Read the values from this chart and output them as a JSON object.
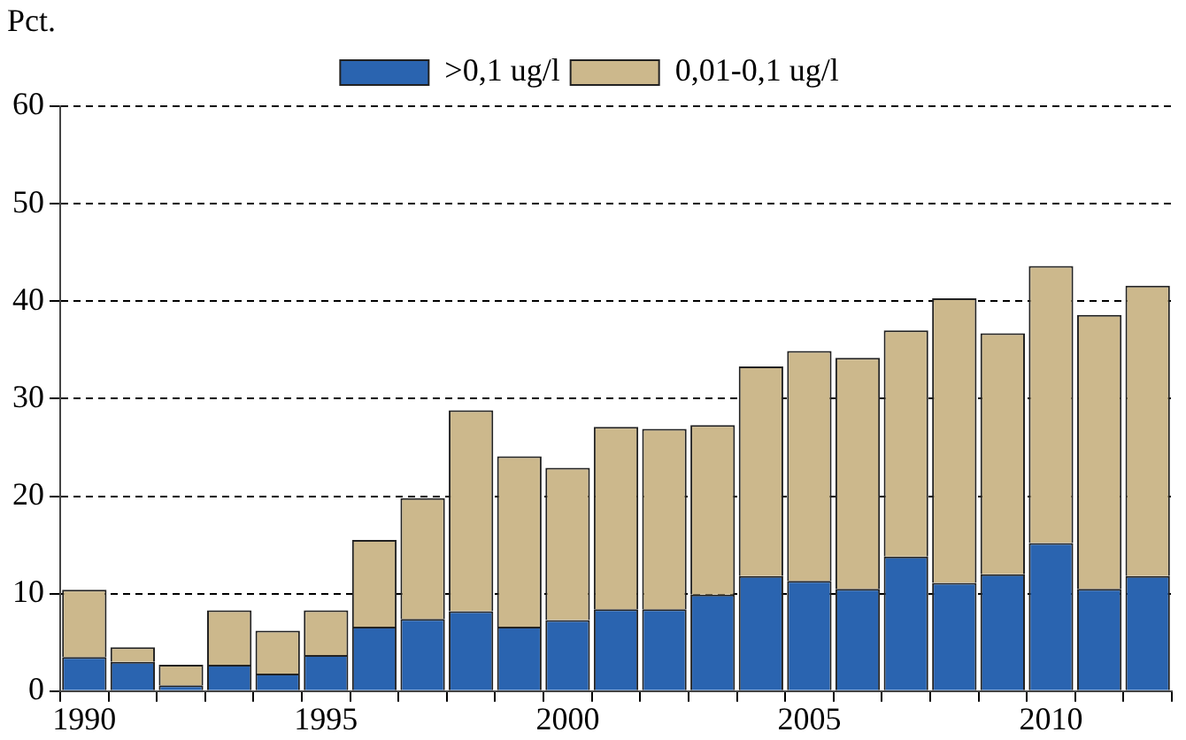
{
  "chart_data": {
    "type": "bar",
    "stacked": true,
    "ylabel": "Pct.",
    "categories": [
      "1990",
      null,
      null,
      null,
      null,
      "1995",
      null,
      null,
      null,
      null,
      "2000",
      null,
      null,
      null,
      null,
      "2005",
      null,
      null,
      null,
      null,
      "2010",
      null,
      null
    ],
    "series": [
      {
        "name": ">0,1 ug/l",
        "color": "#2a64b0",
        "values": [
          3.5,
          3.0,
          0.6,
          2.7,
          1.8,
          3.7,
          6.6,
          7.4,
          8.2,
          6.6,
          7.3,
          8.4,
          8.4,
          9.9,
          11.8,
          11.3,
          10.5,
          13.8,
          11.1,
          12.0,
          15.2,
          10.5,
          11.8
        ]
      },
      {
        "name": "0,01-0,1 ug/l",
        "color": "#ccb88c",
        "values": [
          6.9,
          1.5,
          2.1,
          5.6,
          4.4,
          4.6,
          8.9,
          12.4,
          20.6,
          17.5,
          15.6,
          18.7,
          18.5,
          17.4,
          21.5,
          23.6,
          23.7,
          23.2,
          29.2,
          24.7,
          28.4,
          28.1,
          29.8
        ]
      }
    ],
    "ylim": [
      0,
      60
    ],
    "yticks": [
      0,
      10,
      20,
      30,
      40,
      50,
      60
    ],
    "grid": "y",
    "legend": "top left"
  }
}
